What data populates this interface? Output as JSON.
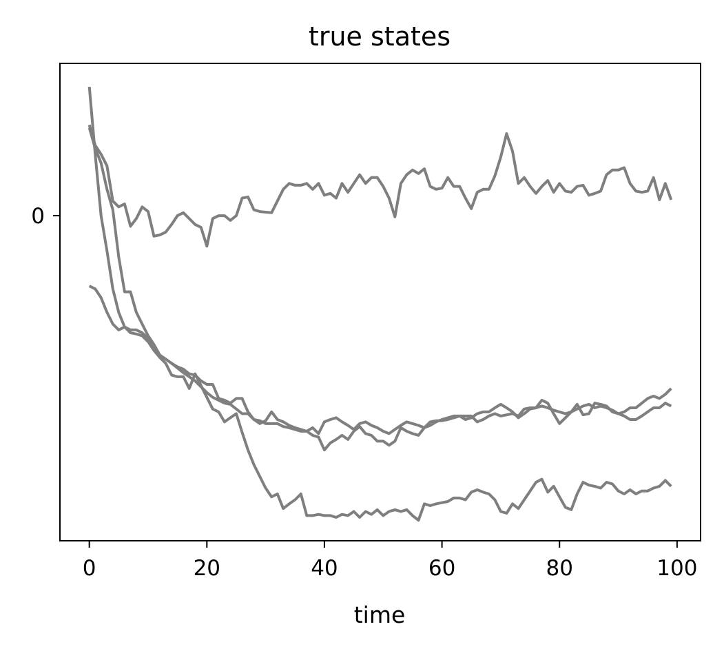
{
  "chart_data": {
    "type": "line",
    "title": "true states",
    "xlabel": "time",
    "ylabel": "",
    "xlim": [
      -5,
      104
    ],
    "ylim": [
      -5.55,
      2.6
    ],
    "xticks": [
      0,
      20,
      40,
      60,
      80,
      100
    ],
    "yticks": [
      0
    ],
    "grid": false,
    "legend": "none",
    "colors": {
      "line": "#7f7f7f",
      "axis": "#000000",
      "background": "#ffffff"
    },
    "series": [
      {
        "x": [
          0,
          1,
          2,
          3,
          4,
          5,
          6,
          7,
          8,
          9,
          10,
          11,
          12,
          13,
          14,
          15,
          16,
          17,
          18,
          19,
          20,
          21,
          22,
          23,
          24,
          25,
          26,
          27,
          28,
          29,
          30,
          31,
          32,
          33,
          34,
          35,
          36,
          37,
          38,
          39,
          40,
          41,
          42,
          43,
          44,
          45,
          46,
          47,
          48,
          49,
          50,
          51,
          52,
          53,
          54,
          55,
          56,
          57,
          58,
          59,
          60,
          61,
          62,
          63,
          64,
          65,
          66,
          67,
          68,
          69,
          70,
          71,
          72,
          73,
          74,
          75,
          76,
          77,
          78,
          79,
          80,
          81,
          82,
          83,
          84,
          85,
          86,
          87,
          88,
          89,
          90,
          91,
          92,
          93,
          94,
          95,
          96,
          97,
          98,
          99
        ],
        "values": [
          1.55,
          1.2,
          1.05,
          0.85,
          0.25,
          0.15,
          0.2,
          -0.18,
          -0.05,
          0.15,
          0.07,
          -0.35,
          -0.33,
          -0.28,
          -0.15,
          0.0,
          0.05,
          -0.05,
          -0.15,
          -0.2,
          -0.52,
          -0.05,
          0.0,
          0.0,
          -0.08,
          0.0,
          0.3,
          0.32,
          0.1,
          0.07,
          0.06,
          0.05,
          0.25,
          0.45,
          0.55,
          0.52,
          0.52,
          0.55,
          0.45,
          0.55,
          0.35,
          0.38,
          0.3,
          0.55,
          0.4,
          0.55,
          0.7,
          0.55,
          0.65,
          0.65,
          0.5,
          0.3,
          -0.02,
          0.55,
          0.7,
          0.78,
          0.72,
          0.8,
          0.5,
          0.45,
          0.47,
          0.65,
          0.5,
          0.5,
          0.3,
          0.12,
          0.4,
          0.45,
          0.45,
          0.68,
          1.0,
          1.4,
          1.1,
          0.55,
          0.65,
          0.5,
          0.38,
          0.5,
          0.6,
          0.4,
          0.55,
          0.42,
          0.4,
          0.5,
          0.52,
          0.35,
          0.38,
          0.42,
          0.7,
          0.78,
          0.78,
          0.82,
          0.55,
          0.42,
          0.4,
          0.42,
          0.65,
          0.27,
          0.55,
          0.27
        ]
      },
      {
        "x": [
          0,
          1,
          2,
          3,
          4,
          5,
          6,
          7,
          8,
          9,
          10,
          11,
          12,
          13,
          14,
          15,
          16,
          17,
          18,
          19,
          20,
          21,
          22,
          23,
          24,
          25,
          26,
          27,
          28,
          29,
          30,
          31,
          32,
          33,
          34,
          35,
          36,
          37,
          38,
          39,
          40,
          41,
          42,
          43,
          44,
          45,
          46,
          47,
          48,
          49,
          50,
          51,
          52,
          53,
          54,
          55,
          56,
          57,
          58,
          59,
          60,
          61,
          62,
          63,
          64,
          65,
          66,
          67,
          68,
          69,
          70,
          71,
          72,
          73,
          74,
          75,
          76,
          77,
          78,
          79,
          80,
          81,
          82,
          83,
          84,
          85,
          86,
          87,
          88,
          89,
          90,
          91,
          92,
          93,
          94,
          95,
          96,
          97,
          98,
          99
        ],
        "values": [
          2.2,
          1.05,
          0.0,
          -0.6,
          -1.25,
          -1.65,
          -1.9,
          -2.0,
          -2.02,
          -2.05,
          -2.15,
          -2.3,
          -2.42,
          -2.52,
          -2.72,
          -2.75,
          -2.75,
          -2.95,
          -2.7,
          -2.9,
          -3.1,
          -3.3,
          -3.35,
          -3.52,
          -3.45,
          -3.38,
          -3.7,
          -4.0,
          -4.25,
          -4.45,
          -4.65,
          -4.8,
          -4.75,
          -5.0,
          -4.92,
          -4.85,
          -4.75,
          -5.12,
          -5.12,
          -5.1,
          -5.12,
          -5.12,
          -5.15,
          -5.1,
          -5.12,
          -5.05,
          -5.15,
          -5.05,
          -5.1,
          -5.02,
          -5.12,
          -5.05,
          -5.02,
          -5.05,
          -5.02,
          -5.12,
          -5.2,
          -4.92,
          -4.95,
          -4.92,
          -4.9,
          -4.88,
          -4.82,
          -4.82,
          -4.85,
          -4.72,
          -4.68,
          -4.72,
          -4.75,
          -4.85,
          -5.05,
          -5.08,
          -4.92,
          -5.0,
          -4.85,
          -4.7,
          -4.55,
          -4.5,
          -4.72,
          -4.62,
          -4.8,
          -4.98,
          -5.02,
          -4.75,
          -4.55,
          -4.6,
          -4.62,
          -4.65,
          -4.55,
          -4.58,
          -4.7,
          -4.75,
          -4.68,
          -4.75,
          -4.7,
          -4.7,
          -4.65,
          -4.62,
          -4.52,
          -4.62
        ]
      },
      {
        "x": [
          0,
          1,
          2,
          3,
          4,
          5,
          6,
          7,
          8,
          9,
          10,
          11,
          12,
          13,
          14,
          15,
          16,
          17,
          18,
          19,
          20,
          21,
          22,
          23,
          24,
          25,
          26,
          27,
          28,
          29,
          30,
          31,
          32,
          33,
          34,
          35,
          36,
          37,
          38,
          39,
          40,
          41,
          42,
          43,
          44,
          45,
          46,
          47,
          48,
          49,
          50,
          51,
          52,
          53,
          54,
          55,
          56,
          57,
          58,
          59,
          60,
          61,
          62,
          63,
          64,
          65,
          66,
          67,
          68,
          69,
          70,
          71,
          72,
          73,
          74,
          75,
          76,
          77,
          78,
          79,
          80,
          81,
          82,
          83,
          84,
          85,
          86,
          87,
          88,
          89,
          90,
          91,
          92,
          93,
          94,
          95,
          96,
          97,
          98,
          99
        ],
        "values": [
          1.5,
          1.15,
          0.9,
          0.45,
          0.1,
          -0.7,
          -1.3,
          -1.3,
          -1.65,
          -1.85,
          -2.05,
          -2.2,
          -2.38,
          -2.45,
          -2.52,
          -2.6,
          -2.68,
          -2.75,
          -2.82,
          -2.92,
          -3.02,
          -3.1,
          -3.15,
          -3.2,
          -3.22,
          -3.3,
          -3.38,
          -3.38,
          -3.48,
          -3.5,
          -3.55,
          -3.55,
          -3.55,
          -3.6,
          -3.62,
          -3.65,
          -3.68,
          -3.68,
          -3.75,
          -3.78,
          -4.0,
          -3.88,
          -3.82,
          -3.75,
          -3.82,
          -3.68,
          -3.6,
          -3.72,
          -3.75,
          -3.85,
          -3.85,
          -3.92,
          -3.85,
          -3.62,
          -3.68,
          -3.72,
          -3.75,
          -3.62,
          -3.52,
          -3.5,
          -3.5,
          -3.48,
          -3.45,
          -3.42,
          -3.42,
          -3.42,
          -3.52,
          -3.48,
          -3.42,
          -3.38,
          -3.42,
          -3.4,
          -3.38,
          -3.42,
          -3.3,
          -3.28,
          -3.28,
          -3.15,
          -3.2,
          -3.38,
          -3.55,
          -3.45,
          -3.35,
          -3.22,
          -3.4,
          -3.38,
          -3.2,
          -3.22,
          -3.25,
          -3.35,
          -3.38,
          -3.35,
          -3.28,
          -3.28,
          -3.2,
          -3.12,
          -3.08,
          -3.12,
          -3.05,
          -2.95
        ]
      },
      {
        "x": [
          0,
          1,
          2,
          3,
          4,
          5,
          6,
          7,
          8,
          9,
          10,
          11,
          12,
          13,
          14,
          15,
          16,
          17,
          18,
          19,
          20,
          21,
          22,
          23,
          24,
          25,
          26,
          27,
          28,
          29,
          30,
          31,
          32,
          33,
          34,
          35,
          36,
          37,
          38,
          39,
          40,
          41,
          42,
          43,
          44,
          45,
          46,
          47,
          48,
          49,
          50,
          51,
          52,
          53,
          54,
          55,
          56,
          57,
          58,
          59,
          60,
          61,
          62,
          63,
          64,
          65,
          66,
          67,
          68,
          69,
          70,
          71,
          72,
          73,
          74,
          75,
          76,
          77,
          78,
          79,
          80,
          81,
          82,
          83,
          84,
          85,
          86,
          87,
          88,
          89,
          90,
          91,
          92,
          93,
          94,
          95,
          96,
          97,
          98,
          99
        ],
        "values": [
          -1.2,
          -1.25,
          -1.4,
          -1.65,
          -1.85,
          -1.95,
          -1.9,
          -1.95,
          -1.95,
          -2.0,
          -2.1,
          -2.25,
          -2.38,
          -2.45,
          -2.52,
          -2.58,
          -2.62,
          -2.7,
          -2.72,
          -2.82,
          -2.88,
          -2.88,
          -3.12,
          -3.15,
          -3.2,
          -3.12,
          -3.12,
          -3.35,
          -3.48,
          -3.55,
          -3.5,
          -3.35,
          -3.48,
          -3.52,
          -3.58,
          -3.62,
          -3.65,
          -3.68,
          -3.62,
          -3.72,
          -3.52,
          -3.48,
          -3.45,
          -3.52,
          -3.58,
          -3.65,
          -3.55,
          -3.52,
          -3.58,
          -3.62,
          -3.68,
          -3.72,
          -3.65,
          -3.58,
          -3.52,
          -3.55,
          -3.58,
          -3.62,
          -3.58,
          -3.52,
          -3.48,
          -3.45,
          -3.42,
          -3.42,
          -3.48,
          -3.45,
          -3.38,
          -3.35,
          -3.35,
          -3.28,
          -3.22,
          -3.28,
          -3.35,
          -3.45,
          -3.38,
          -3.3,
          -3.28,
          -3.25,
          -3.28,
          -3.32,
          -3.35,
          -3.38,
          -3.35,
          -3.3,
          -3.25,
          -3.22,
          -3.28,
          -3.25,
          -3.28,
          -3.32,
          -3.38,
          -3.42,
          -3.48,
          -3.48,
          -3.42,
          -3.35,
          -3.28,
          -3.28,
          -3.2,
          -3.25
        ]
      }
    ]
  }
}
